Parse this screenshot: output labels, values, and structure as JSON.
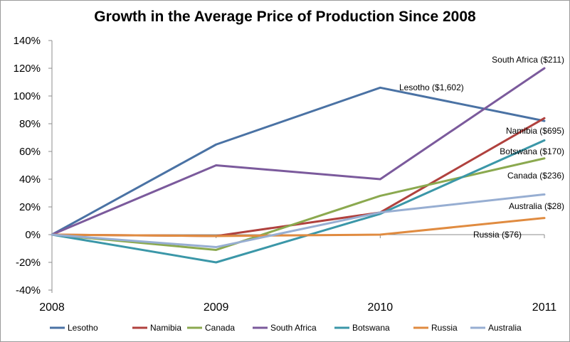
{
  "chart_data": {
    "type": "line",
    "title": "Growth in the Average Price of Production Since 2008",
    "xlabel": "",
    "ylabel": "",
    "x": [
      "2008",
      "2009",
      "2010",
      "2011"
    ],
    "ylim": [
      -40,
      140
    ],
    "yticks": [
      "140%",
      "120%",
      "100%",
      "80%",
      "60%",
      "40%",
      "20%",
      "0%",
      "-20%",
      "-40%"
    ],
    "grid": false,
    "legend_position": "bottom",
    "series": [
      {
        "name": "Lesotho",
        "color": "#4a72a4",
        "values": [
          0,
          65,
          106,
          82
        ],
        "annotation": "Lesotho ($1,602)"
      },
      {
        "name": "Namibia",
        "color": "#b0413e",
        "values": [
          0,
          -1,
          16,
          84
        ],
        "annotation": "Namibia ($695)"
      },
      {
        "name": "Canada",
        "color": "#8ba94f",
        "values": [
          0,
          -11,
          28,
          55
        ],
        "annotation": "Canada ($236)"
      },
      {
        "name": "South Africa",
        "color": "#7b5a9c",
        "values": [
          0,
          50,
          40,
          120
        ],
        "annotation": "South Africa ($211)"
      },
      {
        "name": "Botswana",
        "color": "#3b97a8",
        "values": [
          0,
          -20,
          15,
          68
        ],
        "annotation": "Botswana ($170)"
      },
      {
        "name": "Russia",
        "color": "#e08b40",
        "values": [
          0,
          -1,
          0,
          12
        ],
        "annotation": "Russia ($76)"
      },
      {
        "name": "Australia",
        "color": "#97aed2",
        "values": [
          0,
          -9,
          16,
          29
        ],
        "annotation": "Australia ($28)"
      }
    ]
  }
}
